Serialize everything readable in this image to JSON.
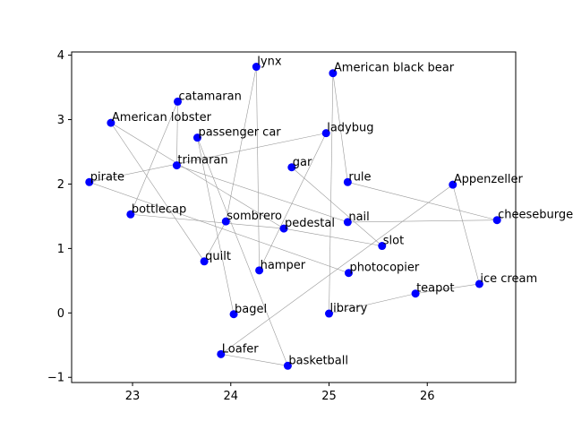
{
  "chart_data": {
    "type": "scatter",
    "title": "",
    "xlabel": "",
    "ylabel": "",
    "xlim": [
      22.38,
      26.9
    ],
    "ylim": [
      -1.08,
      4.05
    ],
    "xticks": [
      23,
      24,
      25,
      26
    ],
    "yticks": [
      -1,
      0,
      1,
      2,
      3,
      4
    ],
    "grid": false,
    "point_color": "#0000ff",
    "edge_color": "#999999",
    "points": [
      {
        "label": "lynx",
        "x": 24.26,
        "y": 3.82
      },
      {
        "label": "American black bear",
        "x": 25.04,
        "y": 3.72
      },
      {
        "label": "catamaran",
        "x": 23.46,
        "y": 3.28
      },
      {
        "label": "American lobster",
        "x": 22.78,
        "y": 2.95
      },
      {
        "label": "passenger car",
        "x": 23.66,
        "y": 2.72
      },
      {
        "label": "ladybug",
        "x": 24.97,
        "y": 2.79
      },
      {
        "label": "gar",
        "x": 24.62,
        "y": 2.26
      },
      {
        "label": "trimaran",
        "x": 23.45,
        "y": 2.29
      },
      {
        "label": "pirate",
        "x": 22.56,
        "y": 2.03
      },
      {
        "label": "rule",
        "x": 25.19,
        "y": 2.03
      },
      {
        "label": "Appenzeller",
        "x": 26.26,
        "y": 1.99
      },
      {
        "label": "bottlecap",
        "x": 22.98,
        "y": 1.53
      },
      {
        "label": "sombrero",
        "x": 23.95,
        "y": 1.42
      },
      {
        "label": "pedestal",
        "x": 24.54,
        "y": 1.31
      },
      {
        "label": "nail",
        "x": 25.19,
        "y": 1.41
      },
      {
        "label": "cheeseburger",
        "x": 26.71,
        "y": 1.44
      },
      {
        "label": "slot",
        "x": 25.54,
        "y": 1.04
      },
      {
        "label": "quilt",
        "x": 23.73,
        "y": 0.8
      },
      {
        "label": "hamper",
        "x": 24.29,
        "y": 0.66
      },
      {
        "label": "photocopier",
        "x": 25.2,
        "y": 0.62
      },
      {
        "label": "ice cream",
        "x": 26.53,
        "y": 0.45
      },
      {
        "label": "teapot",
        "x": 25.88,
        "y": 0.3
      },
      {
        "label": "bagel",
        "x": 24.03,
        "y": -0.02
      },
      {
        "label": "library",
        "x": 25.0,
        "y": -0.01
      },
      {
        "label": "Loafer",
        "x": 23.9,
        "y": -0.64
      },
      {
        "label": "basketball",
        "x": 24.58,
        "y": -0.82
      }
    ],
    "edges": [
      [
        "lynx",
        "hamper"
      ],
      [
        "lynx",
        "sombrero"
      ],
      [
        "American black bear",
        "library"
      ],
      [
        "American black bear",
        "rule"
      ],
      [
        "catamaran",
        "trimaran"
      ],
      [
        "catamaran",
        "bottlecap"
      ],
      [
        "American lobster",
        "quilt"
      ],
      [
        "American lobster",
        "pedestal"
      ],
      [
        "passenger car",
        "basketball"
      ],
      [
        "passenger car",
        "bagel"
      ],
      [
        "ladybug",
        "pirate"
      ],
      [
        "ladybug",
        "hamper"
      ],
      [
        "gar",
        "slot"
      ],
      [
        "trimaran",
        "nail"
      ],
      [
        "pirate",
        "photocopier"
      ],
      [
        "rule",
        "cheeseburger"
      ],
      [
        "Appenzeller",
        "ice cream"
      ],
      [
        "Appenzeller",
        "Loafer"
      ],
      [
        "bottlecap",
        "pedestal"
      ],
      [
        "sombrero",
        "quilt"
      ],
      [
        "pedestal",
        "slot"
      ],
      [
        "nail",
        "cheeseburger"
      ],
      [
        "ice cream",
        "teapot"
      ],
      [
        "teapot",
        "library"
      ],
      [
        "Loafer",
        "basketball"
      ]
    ]
  }
}
